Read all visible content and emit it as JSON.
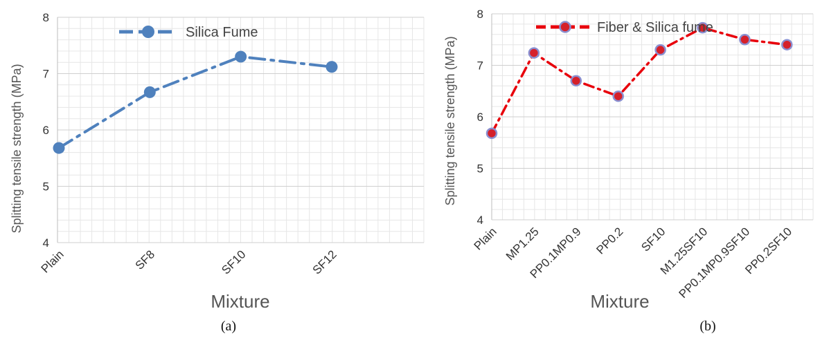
{
  "chart_data": [
    {
      "type": "line",
      "categories": [
        "Plain",
        "SF8",
        "SF10",
        "SF12"
      ],
      "series": [
        {
          "name": "Silica Fume",
          "values": [
            5.68,
            6.67,
            7.3,
            7.12
          ],
          "color": "#4f81bd"
        }
      ],
      "xlabel": "Mixture",
      "ylabel": "Splitting tensile strength (MPa)",
      "ylim": [
        4,
        8
      ],
      "yticks": [
        "4",
        "5",
        "6",
        "7",
        "8"
      ],
      "grid": true,
      "legend": "top",
      "caption": "(a)"
    },
    {
      "type": "line",
      "categories": [
        "Plain",
        "MP1.25",
        "PP0.1MP0.9",
        "PP0.2",
        "SF10",
        "M1.25SF10",
        "PP0.1MP0.9SF10",
        "PP0.2SF10"
      ],
      "series": [
        {
          "name": "Fiber & Silica fume",
          "values": [
            5.68,
            7.24,
            6.7,
            6.4,
            7.3,
            7.73,
            7.5,
            7.4
          ],
          "color": "#e8000b",
          "marker_color": "#d5202a",
          "marker_edge": "#8a8fd0"
        }
      ],
      "xlabel": "Mixture",
      "ylabel": "Splitting tensile strength (MPa)",
      "ylim": [
        4,
        8
      ],
      "yticks": [
        "4",
        "5",
        "6",
        "7",
        "8"
      ],
      "grid": true,
      "legend": "top",
      "caption": "(b)"
    }
  ]
}
